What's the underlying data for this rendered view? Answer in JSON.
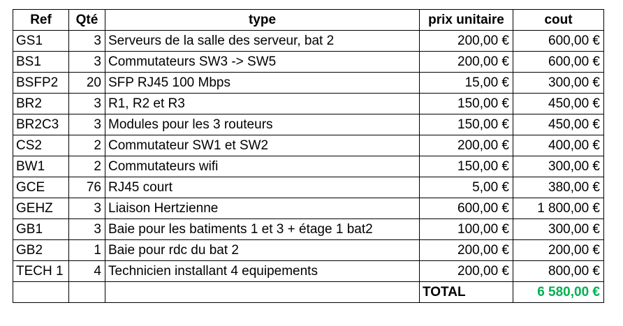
{
  "colors": {
    "total_value": "#00b050",
    "border": "#000000"
  },
  "headers": {
    "ref": "Ref",
    "qte": "Qté",
    "type": "type",
    "prix": "prix unitaire",
    "cout": "cout"
  },
  "rows": [
    {
      "ref": "GS1",
      "qte": "3",
      "type": "Serveurs de la salle des serveur, bat 2",
      "prix": "200,00 €",
      "cout": "600,00 €"
    },
    {
      "ref": "BS1",
      "qte": "3",
      "type": "Commutateurs SW3 -> SW5",
      "prix": "200,00 €",
      "cout": "600,00 €"
    },
    {
      "ref": "BSFP2",
      "qte": "20",
      "type": "SFP RJ45 100 Mbps",
      "prix": "15,00 €",
      "cout": "300,00 €"
    },
    {
      "ref": "BR2",
      "qte": "3",
      "type": "R1, R2 et R3",
      "prix": "150,00 €",
      "cout": "450,00 €"
    },
    {
      "ref": "BR2C3",
      "qte": "3",
      "type": "Modules pour les 3 routeurs",
      "prix": "150,00 €",
      "cout": "450,00 €"
    },
    {
      "ref": "CS2",
      "qte": "2",
      "type": "Commutateur SW1 et SW2",
      "prix": "200,00 €",
      "cout": "400,00 €"
    },
    {
      "ref": "BW1",
      "qte": "2",
      "type": "Commutateurs wifi",
      "prix": "150,00 €",
      "cout": "300,00 €"
    },
    {
      "ref": "GCE",
      "qte": "76",
      "type": "RJ45 court",
      "prix": "5,00 €",
      "cout": "380,00 €"
    },
    {
      "ref": "GEHZ",
      "qte": "3",
      "type": "Liaison Hertzienne",
      "prix": "600,00 €",
      "cout": "1 800,00 €"
    },
    {
      "ref": "GB1",
      "qte": "3",
      "type": "Baie pour les batiments 1 et 3 + étage 1 bat2",
      "prix": "100,00 €",
      "cout": "300,00 €"
    },
    {
      "ref": "GB2",
      "qte": "1",
      "type": "Baie pour rdc du bat 2",
      "prix": "200,00 €",
      "cout": "200,00 €"
    },
    {
      "ref": "TECH 1",
      "qte": "4",
      "type": "Technicien installant 4 equipements",
      "prix": "200,00 €",
      "cout": "800,00 €"
    }
  ],
  "total": {
    "label": "TOTAL",
    "value": "6 580,00 €"
  }
}
